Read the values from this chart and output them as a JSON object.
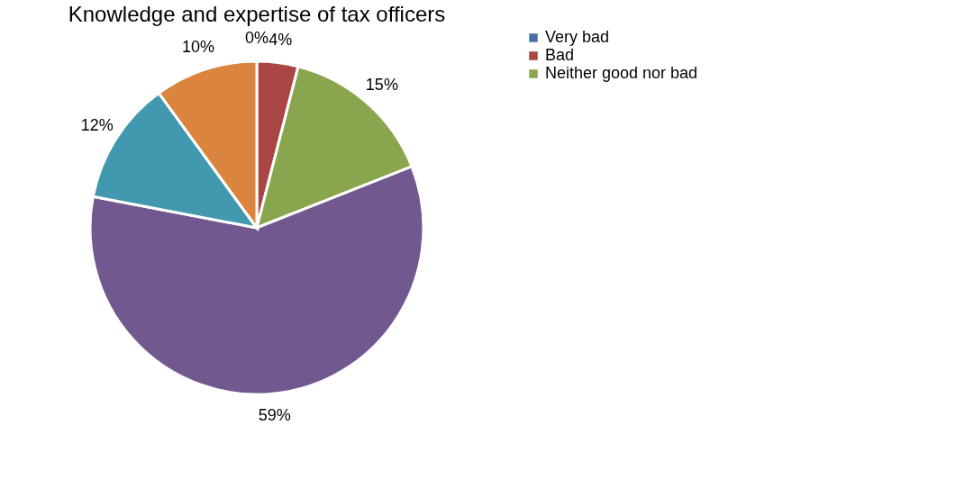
{
  "chart_data": {
    "type": "pie",
    "title": "Knowledge and expertise of tax officers",
    "categories": [
      "Very bad",
      "Bad",
      "Neither good nor bad",
      null,
      null,
      null
    ],
    "values": [
      0,
      4,
      15,
      59,
      12,
      10
    ],
    "value_labels": [
      "0%",
      "4%",
      "15%",
      "59%",
      "12%",
      "10%"
    ],
    "colors": [
      "#4572a7",
      "#aa4643",
      "#89a54e",
      "#71588f",
      "#4198af",
      "#db843d"
    ],
    "legend": "right"
  }
}
